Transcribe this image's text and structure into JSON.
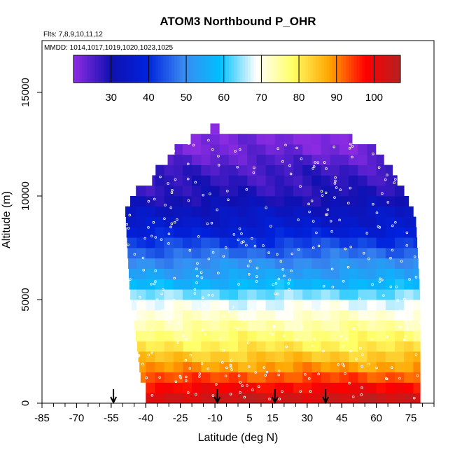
{
  "chart_data": {
    "type": "heatmap",
    "title": "ATOM3 Northbound P_OHR",
    "subtitle_flights": "Flts: 7,8,9,10,11,12",
    "subtitle_dates": "MMDD: 1014,1017,1019,1020,1023,1025",
    "xlabel": "Latitude (deg N)",
    "ylabel": "Altitude (m)",
    "xlim": [
      -85,
      85
    ],
    "ylim": [
      0,
      17500
    ],
    "x_ticks": [
      -85,
      -70,
      -55,
      -40,
      -25,
      -10,
      5,
      15,
      30,
      45,
      60,
      75
    ],
    "y_ticks": [
      0,
      5000,
      10000,
      15000
    ],
    "colorbar": {
      "range": [
        20,
        107
      ],
      "ticks": [
        30,
        40,
        50,
        60,
        70,
        80,
        90,
        100
      ],
      "colors": [
        "#8a2be2",
        "#1010b0",
        "#0022dd",
        "#3a8af0",
        "#00bfff",
        "#ffffff",
        "#ffff66",
        "#ffa500",
        "#ff0000",
        "#b22222"
      ]
    },
    "marker_latitudes": [
      -54,
      -9,
      16,
      38
    ],
    "profile": {
      "altitude_m": [
        250,
        750,
        1250,
        1750,
        2250,
        2750,
        3250,
        3750,
        4250,
        4750,
        5250,
        5750,
        6250,
        6750,
        7250,
        7750,
        8250,
        8750,
        9250,
        9750,
        10250,
        10750,
        11250,
        11750,
        12250,
        12750,
        13250
      ],
      "p_ohr": [
        103,
        98,
        93,
        88,
        84,
        80,
        77,
        74,
        71,
        68,
        63,
        57,
        53,
        50,
        46,
        42,
        38,
        35,
        33,
        30,
        28,
        27,
        26,
        24,
        22,
        21,
        20
      ]
    }
  }
}
